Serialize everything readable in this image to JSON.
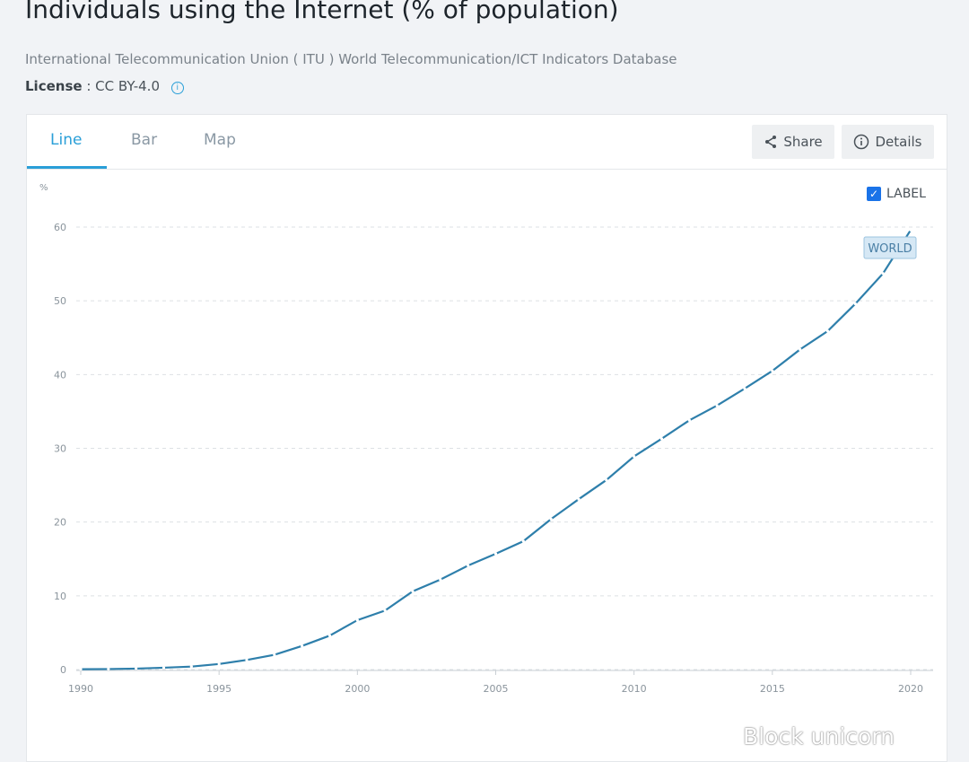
{
  "header": {
    "title": "Individuals using the Internet (% of population)",
    "source": "International Telecommunication Union ( ITU ) World Telecommunication/ICT Indicators Database",
    "license_label": "License",
    "license_value": ": CC BY-4.0"
  },
  "tabs": [
    {
      "label": "Line",
      "active": true
    },
    {
      "label": "Bar",
      "active": false
    },
    {
      "label": "Map",
      "active": false
    }
  ],
  "buttons": {
    "share": "Share",
    "details": "Details"
  },
  "label_toggle": {
    "label": "LABEL",
    "checked": true
  },
  "watermark": "Block unicorn",
  "colors": {
    "accent": "#2a9fd8",
    "line": "#2e7fab"
  },
  "chart_data": {
    "type": "line",
    "ylabel": "%",
    "xlim": [
      1990,
      2020
    ],
    "ylim": [
      0,
      60
    ],
    "xticks": [
      1990,
      1995,
      2000,
      2005,
      2010,
      2015,
      2020
    ],
    "yticks": [
      0,
      10,
      20,
      30,
      40,
      50,
      60
    ],
    "grid": true,
    "series": [
      {
        "name": "WORLD",
        "x": [
          1990,
          1991,
          1992,
          1993,
          1994,
          1995,
          1996,
          1997,
          1998,
          1999,
          2000,
          2001,
          2002,
          2003,
          2004,
          2005,
          2006,
          2007,
          2008,
          2009,
          2010,
          2011,
          2012,
          2013,
          2014,
          2015,
          2016,
          2017,
          2018,
          2019,
          2020
        ],
        "y": [
          0.05,
          0.07,
          0.13,
          0.25,
          0.4,
          0.75,
          1.3,
          2.0,
          3.2,
          4.6,
          6.7,
          8.0,
          10.6,
          12.2,
          14.1,
          15.7,
          17.4,
          20.4,
          23.1,
          25.7,
          28.9,
          31.3,
          33.8,
          35.8,
          38.1,
          40.5,
          43.4,
          45.9,
          49.6,
          53.7,
          59.6
        ]
      }
    ]
  }
}
